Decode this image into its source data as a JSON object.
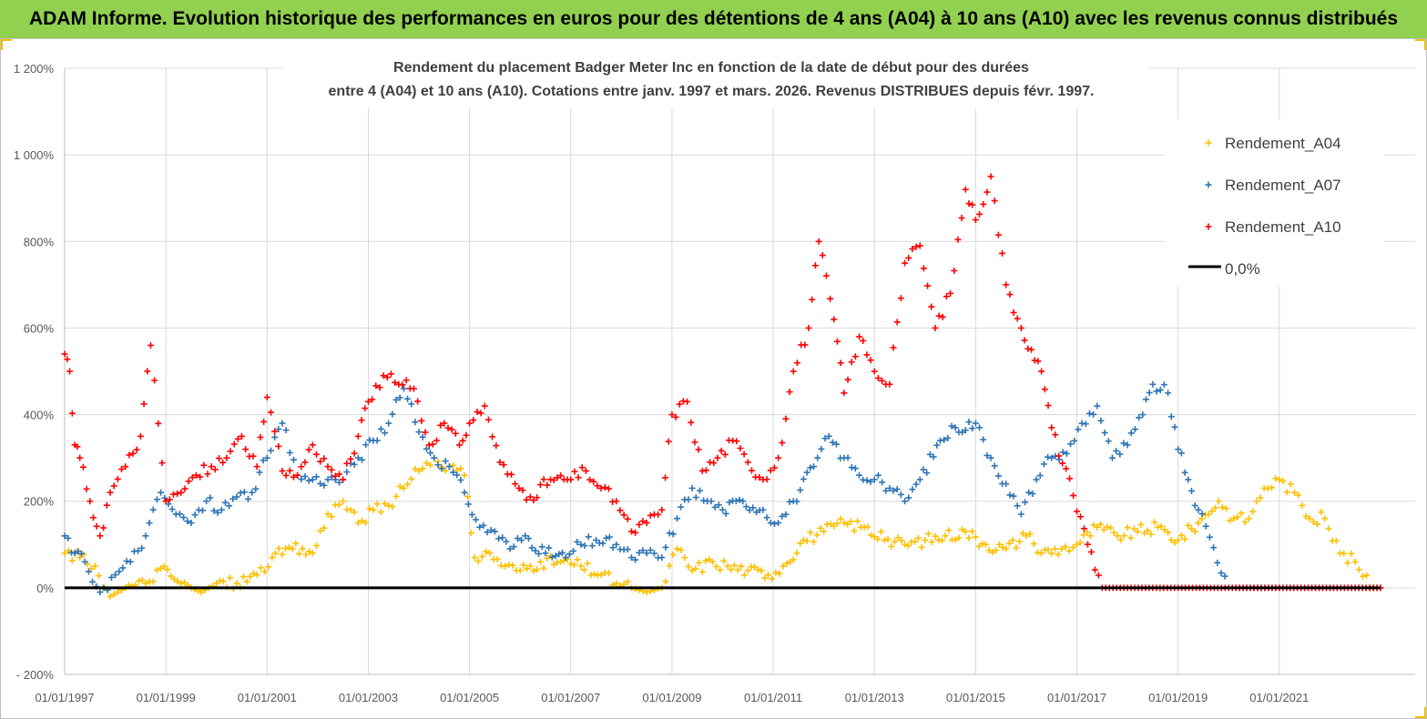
{
  "banner": {
    "title": "ADAM Informe. Evolution historique des performances en euros pour des détentions de 4 ans (A04) à 10 ans (A10) avec les revenus connus distribués",
    "background": "#92d050"
  },
  "chart_data": {
    "type": "scatter",
    "title_line1": "Rendement du placement Badger Meter Inc en fonction de la date de début pour des durées",
    "title_line2": "entre 4 (A04) et 10 ans (A10). Cotations entre janv. 1997 et mars. 2026. Revenus DISTRIBUES depuis févr. 1997.",
    "xlabel": "",
    "ylabel": "",
    "xlim": [
      1997.0,
      2023.0
    ],
    "ylim": [
      -200,
      1200
    ],
    "y_ticks": [
      -200,
      0,
      200,
      400,
      600,
      800,
      1000,
      1200
    ],
    "y_tick_labels": [
      "- 200%",
      "0%",
      "200%",
      "400%",
      "600%",
      "800%",
      "1 000%",
      "1 200%"
    ],
    "x_ticks": [
      1997,
      1999,
      2001,
      2003,
      2005,
      2007,
      2009,
      2011,
      2013,
      2015,
      2017,
      2019,
      2021
    ],
    "x_tick_labels": [
      "01/01/1997",
      "01/01/1999",
      "01/01/2001",
      "01/01/2003",
      "01/01/2005",
      "01/01/2007",
      "01/01/2009",
      "01/01/2011",
      "01/01/2013",
      "01/01/2015",
      "01/01/2017",
      "01/01/2019",
      "01/01/2021"
    ],
    "grid": true,
    "legend_position": "top-right",
    "series": [
      {
        "name": "Rendement_A04",
        "marker": "+",
        "color": "#ffc000",
        "x": [
          1997.0,
          1997.3,
          1997.6,
          1997.9,
          1998.2,
          1998.6,
          1998.9,
          1999.3,
          1999.7,
          2000.0,
          2000.4,
          2000.8,
          2001.1,
          2001.5,
          2001.9,
          2002.2,
          2002.5,
          2002.8,
          2003.1,
          2003.4,
          2003.7,
          2004.0,
          2004.3,
          2004.6,
          2004.9,
          2005.1,
          2005.4,
          2005.7,
          2006.0,
          2006.4,
          2006.8,
          2007.2,
          2007.6,
          2007.9,
          2008.2,
          2008.5,
          2008.8,
          2009.1,
          2009.4,
          2009.8,
          2010.1,
          2010.5,
          2010.9,
          2011.2,
          2011.6,
          2012.0,
          2012.4,
          2012.8,
          2013.2,
          2013.6,
          2014.0,
          2014.4,
          2014.8,
          2015.2,
          2015.6,
          2016.0,
          2016.3,
          2016.7,
          2017.0,
          2017.4,
          2017.8,
          2018.2,
          2018.6,
          2019.0,
          2019.4,
          2019.8,
          2020.1,
          2020.4,
          2020.7,
          2021.0,
          2021.3,
          2021.6,
          2021.9,
          2022.2,
          2022.5,
          2022.8,
          2023.0
        ],
        "values": [
          80,
          70,
          50,
          -20,
          0,
          10,
          45,
          10,
          -10,
          10,
          10,
          30,
          70,
          90,
          80,
          170,
          200,
          150,
          180,
          190,
          230,
          270,
          300,
          280,
          260,
          70,
          80,
          50,
          40,
          60,
          60,
          50,
          30,
          10,
          0,
          -10,
          0,
          90,
          40,
          60,
          50,
          40,
          30,
          50,
          110,
          130,
          150,
          140,
          110,
          100,
          110,
          120,
          130,
          100,
          90,
          120,
          80,
          90,
          100,
          140,
          120,
          130,
          140,
          110,
          150,
          200,
          160,
          160,
          230,
          250,
          220,
          160,
          160,
          80,
          60,
          0,
          0
        ]
      },
      {
        "name": "Rendement_A07",
        "marker": "+",
        "color": "#2e75b6",
        "x": [
          1997.0,
          1997.2,
          1997.4,
          1997.7,
          1998.0,
          1998.3,
          1998.6,
          1998.9,
          1999.2,
          1999.5,
          1999.8,
          2000.1,
          2000.4,
          2000.7,
          2001.0,
          2001.3,
          2001.6,
          2001.9,
          2002.2,
          2002.5,
          2002.8,
          2003.1,
          2003.4,
          2003.7,
          2004.0,
          2004.3,
          2004.6,
          2004.9,
          2005.2,
          2005.5,
          2005.8,
          2006.1,
          2006.5,
          2006.9,
          2007.2,
          2007.5,
          2007.9,
          2008.2,
          2008.5,
          2008.8,
          2009.1,
          2009.4,
          2009.7,
          2010.0,
          2010.4,
          2010.8,
          2011.1,
          2011.4,
          2011.8,
          2012.1,
          2012.4,
          2012.7,
          2013.0,
          2013.3,
          2013.6,
          2013.9,
          2014.3,
          2014.6,
          2015.0,
          2015.3,
          2015.6,
          2015.9,
          2016.2,
          2016.5,
          2016.8,
          2017.1,
          2017.4,
          2017.7,
          2018.0,
          2018.3,
          2018.5,
          2018.8,
          2019.0,
          2019.2,
          2019.4,
          2020.0,
          2021.0,
          2022.0,
          2023.0
        ],
        "values": [
          120,
          80,
          60,
          -10,
          30,
          60,
          120,
          220,
          170,
          150,
          200,
          180,
          210,
          220,
          300,
          380,
          260,
          250,
          250,
          250,
          300,
          340,
          380,
          460,
          360,
          300,
          280,
          220,
          140,
          130,
          90,
          120,
          80,
          70,
          100,
          110,
          100,
          70,
          80,
          70,
          160,
          230,
          200,
          180,
          200,
          180,
          150,
          200,
          280,
          350,
          300,
          260,
          250,
          230,
          200,
          250,
          340,
          370,
          380,
          300,
          240,
          170,
          250,
          300,
          310,
          380,
          420,
          300,
          330,
          400,
          470,
          450,
          320,
          250,
          180,
          0,
          0,
          0,
          0
        ]
      },
      {
        "name": "Rendement_A10",
        "marker": "+",
        "color": "#ff0000",
        "x": [
          1997.0,
          1997.1,
          1997.2,
          1997.3,
          1997.5,
          1997.7,
          1997.9,
          1998.2,
          1998.5,
          1998.7,
          1999.0,
          1999.3,
          1999.6,
          1999.9,
          2000.2,
          2000.5,
          2000.8,
          2001.0,
          2001.3,
          2001.6,
          2001.9,
          2002.2,
          2002.5,
          2002.8,
          2003.0,
          2003.3,
          2003.6,
          2003.9,
          2004.2,
          2004.5,
          2004.8,
          2005.0,
          2005.3,
          2005.6,
          2005.9,
          2006.2,
          2006.6,
          2007.0,
          2007.3,
          2007.6,
          2007.9,
          2008.2,
          2008.5,
          2008.8,
          2009.0,
          2009.3,
          2009.6,
          2009.9,
          2010.2,
          2010.5,
          2010.8,
          2011.1,
          2011.4,
          2011.7,
          2011.9,
          2012.2,
          2012.4,
          2012.7,
          2013.0,
          2013.3,
          2013.6,
          2013.9,
          2014.2,
          2014.5,
          2014.8,
          2015.0,
          2015.3,
          2015.6,
          2015.9,
          2016.1,
          2016.3,
          2016.5,
          2017.5,
          2018.5,
          2019.5,
          2020.5,
          2021.5,
          2022.5,
          2023.0
        ],
        "values": [
          540,
          500,
          330,
          300,
          200,
          120,
          220,
          280,
          350,
          560,
          200,
          220,
          260,
          280,
          300,
          350,
          280,
          440,
          270,
          260,
          330,
          280,
          250,
          350,
          430,
          490,
          470,
          460,
          330,
          380,
          330,
          380,
          420,
          290,
          240,
          210,
          250,
          250,
          270,
          230,
          200,
          130,
          150,
          180,
          400,
          430,
          270,
          300,
          340,
          290,
          250,
          300,
          500,
          600,
          800,
          620,
          450,
          580,
          500,
          470,
          750,
          790,
          600,
          680,
          920,
          850,
          950,
          700,
          600,
          550,
          500,
          370,
          0,
          0,
          0,
          0,
          0,
          0,
          0
        ]
      }
    ],
    "reference_line": {
      "name": "0,0%",
      "value": 0,
      "color": "#000000"
    },
    "legend": [
      "Rendement_A04",
      "Rendement_A07",
      "Rendement_A10",
      "0,0%"
    ]
  }
}
